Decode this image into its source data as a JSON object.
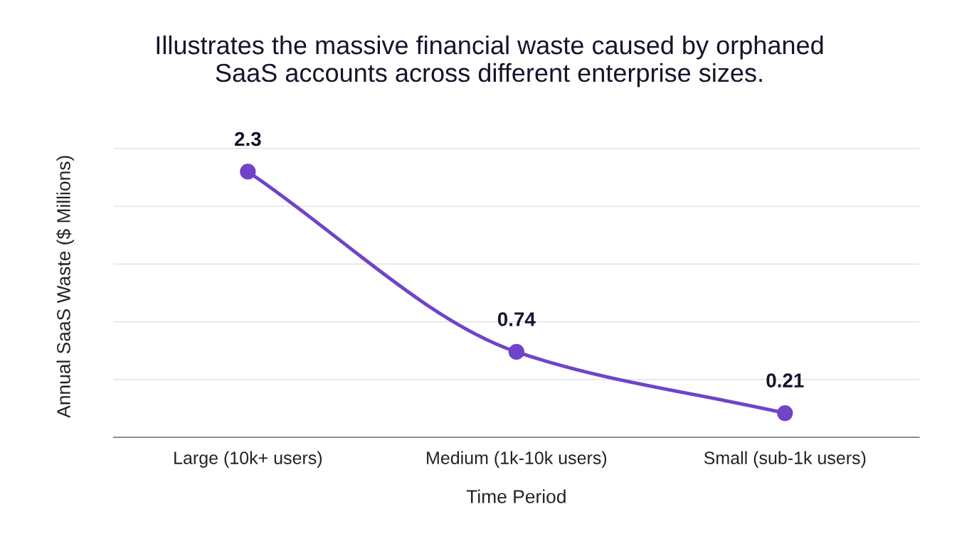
{
  "chart_data": {
    "type": "line",
    "title": "Illustrates the massive financial waste caused by orphaned\nSaaS accounts across different enterprise sizes.",
    "xlabel": "Time Period",
    "ylabel": "Annual SaaS Waste ($ Millions)",
    "categories": [
      "Large (10k+ users)",
      "Medium (1k-10k users)",
      "Small (sub-1k users)"
    ],
    "series": [
      {
        "color": "#6f44c8",
        "values": [
          2.3,
          0.74,
          0.21
        ]
      }
    ],
    "tick_labels": "x",
    "grid": "y",
    "marker": "circle",
    "line_style": "solid",
    "data_labels": true,
    "legend": false
  }
}
